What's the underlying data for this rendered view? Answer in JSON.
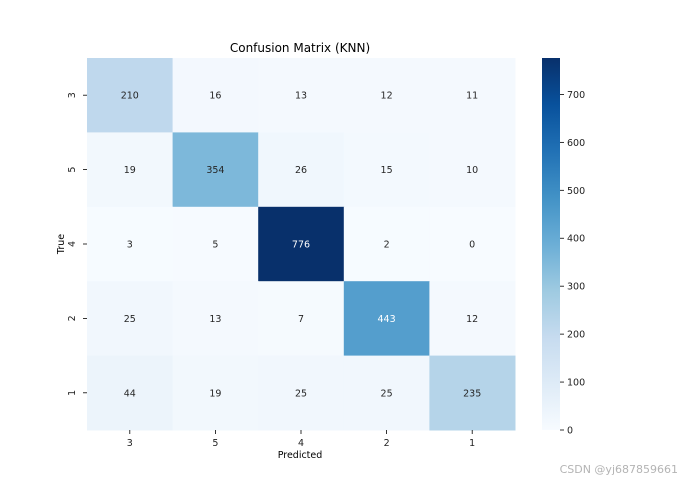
{
  "chart_data": {
    "type": "heatmap",
    "title": "Confusion Matrix (KNN)",
    "xlabel": "Predicted",
    "ylabel": "True",
    "x_categories": [
      "3",
      "5",
      "4",
      "2",
      "1"
    ],
    "y_categories": [
      "3",
      "5",
      "4",
      "2",
      "1"
    ],
    "values": [
      [
        210,
        16,
        13,
        12,
        11
      ],
      [
        19,
        354,
        26,
        15,
        10
      ],
      [
        3,
        5,
        776,
        2,
        0
      ],
      [
        25,
        13,
        7,
        443,
        12
      ],
      [
        44,
        19,
        25,
        25,
        235
      ]
    ],
    "colormap": "Blues",
    "vmin": 0,
    "vmax": 776,
    "colorbar_ticks": [
      0,
      100,
      200,
      300,
      400,
      500,
      600,
      700
    ]
  },
  "watermark": "CSDN @yj687859661"
}
